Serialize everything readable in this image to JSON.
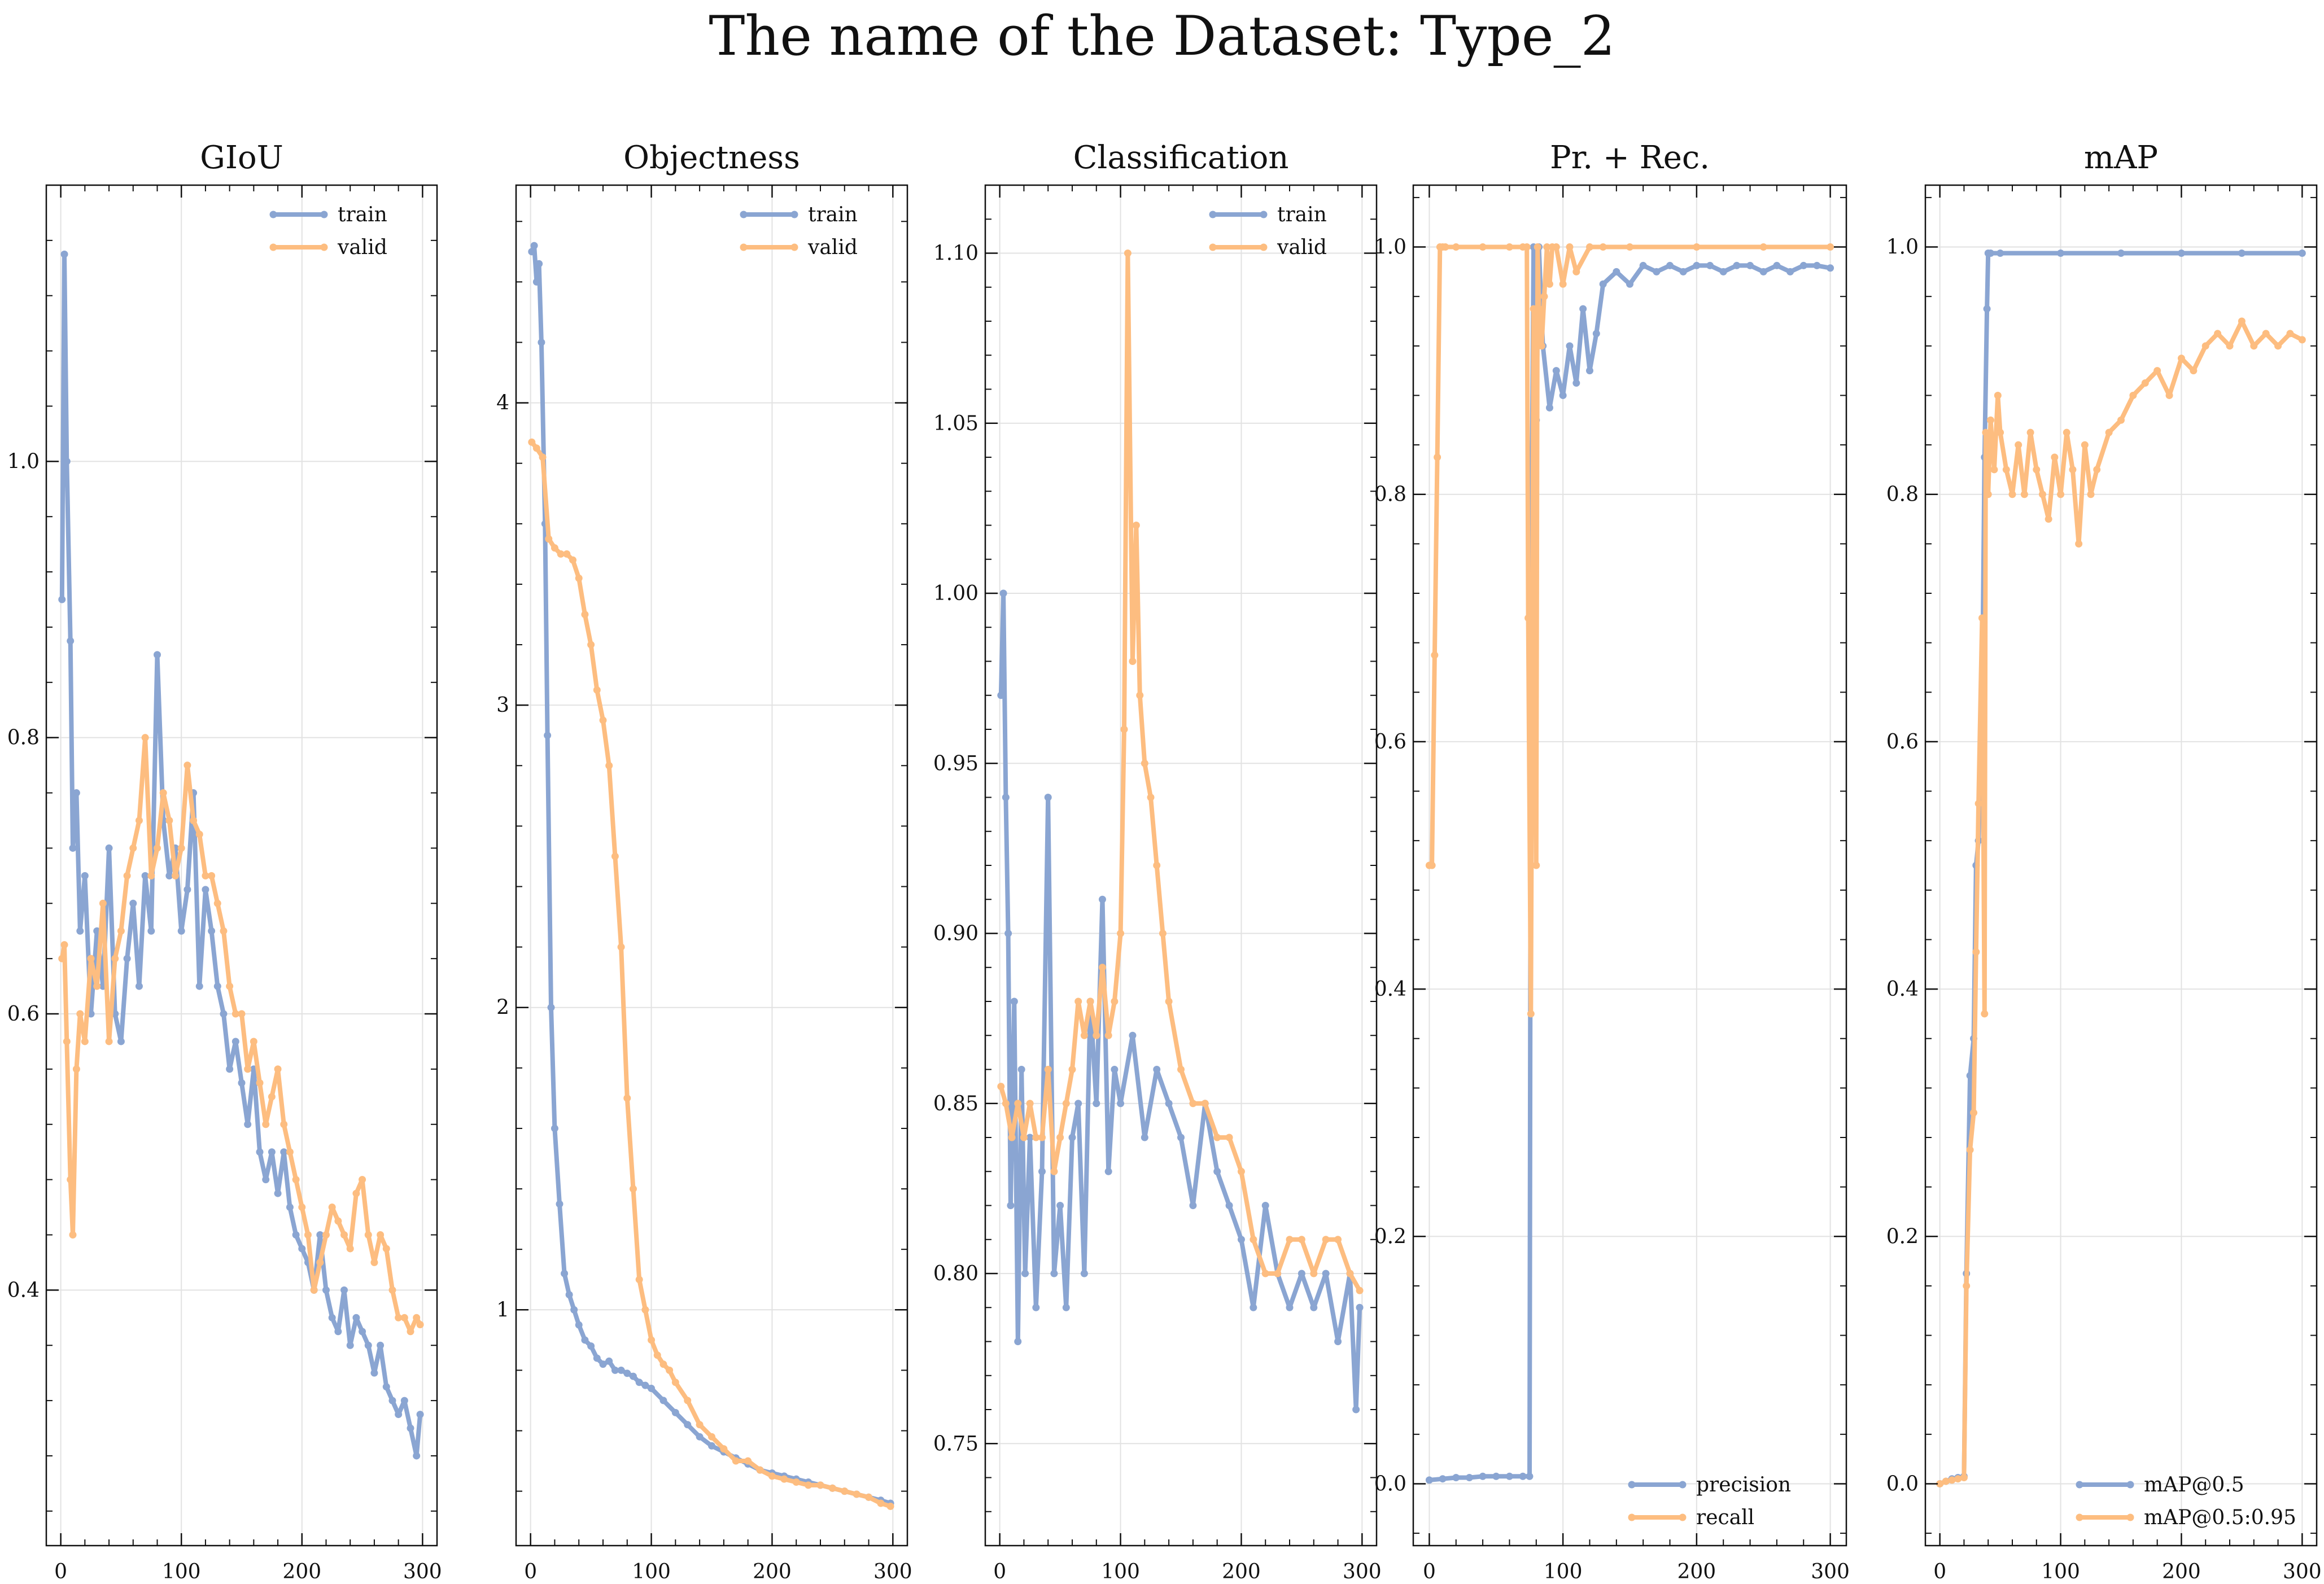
{
  "suptitle": "The name of the Dataset: Type_2",
  "colors": {
    "blue": "#8aa5d2",
    "orange": "#fdbd80"
  },
  "chart_data": [
    {
      "type": "line",
      "title": "GIoU",
      "xlabel": "",
      "ylabel": "",
      "xlim": [
        -12,
        312
      ],
      "ylim": [
        0.215,
        1.2
      ],
      "xticks": [
        0,
        100,
        200,
        300
      ],
      "yticks": [
        0.4,
        0.6,
        0.8,
        1.0
      ],
      "ytick_labels": [
        "0.4",
        "0.6",
        "0.8",
        "1.0"
      ],
      "grid": true,
      "legend": "top-right",
      "series": [
        {
          "name": "train",
          "color": "#8aa5d2",
          "x": [
            1,
            3,
            5,
            8,
            10,
            13,
            16,
            20,
            25,
            30,
            35,
            40,
            45,
            50,
            55,
            60,
            65,
            70,
            75,
            80,
            85,
            90,
            95,
            100,
            105,
            110,
            115,
            120,
            125,
            130,
            135,
            140,
            145,
            150,
            155,
            160,
            165,
            170,
            175,
            180,
            185,
            190,
            195,
            200,
            205,
            210,
            215,
            220,
            225,
            230,
            235,
            240,
            245,
            250,
            255,
            260,
            265,
            270,
            275,
            280,
            285,
            290,
            295,
            298
          ],
          "y": [
            0.9,
            1.15,
            1.0,
            0.87,
            0.72,
            0.76,
            0.66,
            0.7,
            0.6,
            0.66,
            0.62,
            0.72,
            0.6,
            0.58,
            0.64,
            0.68,
            0.62,
            0.7,
            0.66,
            0.86,
            0.74,
            0.7,
            0.72,
            0.66,
            0.69,
            0.76,
            0.62,
            0.69,
            0.66,
            0.62,
            0.6,
            0.56,
            0.58,
            0.55,
            0.52,
            0.56,
            0.5,
            0.48,
            0.5,
            0.47,
            0.5,
            0.46,
            0.44,
            0.43,
            0.42,
            0.4,
            0.44,
            0.4,
            0.38,
            0.37,
            0.4,
            0.36,
            0.38,
            0.37,
            0.36,
            0.34,
            0.36,
            0.33,
            0.32,
            0.31,
            0.32,
            0.3,
            0.28,
            0.31
          ]
        },
        {
          "name": "valid",
          "color": "#fdbd80",
          "x": [
            1,
            3,
            5,
            8,
            10,
            13,
            16,
            20,
            25,
            30,
            35,
            40,
            45,
            50,
            55,
            60,
            65,
            70,
            75,
            80,
            85,
            90,
            95,
            100,
            105,
            110,
            115,
            120,
            125,
            130,
            135,
            140,
            145,
            150,
            155,
            160,
            165,
            170,
            175,
            180,
            185,
            190,
            195,
            200,
            205,
            210,
            215,
            220,
            225,
            230,
            235,
            240,
            245,
            250,
            255,
            260,
            265,
            270,
            275,
            280,
            285,
            290,
            295,
            298
          ],
          "y": [
            0.64,
            0.65,
            0.58,
            0.48,
            0.44,
            0.56,
            0.6,
            0.58,
            0.64,
            0.62,
            0.68,
            0.58,
            0.64,
            0.66,
            0.7,
            0.72,
            0.74,
            0.8,
            0.7,
            0.72,
            0.76,
            0.74,
            0.7,
            0.72,
            0.78,
            0.74,
            0.73,
            0.7,
            0.7,
            0.68,
            0.66,
            0.62,
            0.6,
            0.6,
            0.56,
            0.58,
            0.55,
            0.52,
            0.54,
            0.56,
            0.52,
            0.5,
            0.48,
            0.46,
            0.44,
            0.4,
            0.42,
            0.44,
            0.46,
            0.45,
            0.44,
            0.43,
            0.47,
            0.48,
            0.44,
            0.42,
            0.44,
            0.43,
            0.4,
            0.38,
            0.38,
            0.37,
            0.38,
            0.375
          ]
        }
      ]
    },
    {
      "type": "line",
      "title": "Objectness",
      "xlabel": "",
      "ylabel": "",
      "xlim": [
        -12,
        312
      ],
      "ylim": [
        0.22,
        4.72
      ],
      "xticks": [
        0,
        100,
        200,
        300
      ],
      "yticks": [
        1,
        2,
        3,
        4
      ],
      "ytick_labels": [
        "1",
        "2",
        "3",
        "4"
      ],
      "grid": true,
      "legend": "top-right",
      "series": [
        {
          "name": "train",
          "color": "#8aa5d2",
          "x": [
            1,
            3,
            5,
            7,
            9,
            12,
            14,
            17,
            20,
            24,
            28,
            32,
            36,
            40,
            45,
            50,
            55,
            60,
            65,
            70,
            75,
            80,
            85,
            90,
            95,
            100,
            110,
            120,
            130,
            140,
            150,
            160,
            170,
            180,
            190,
            200,
            210,
            220,
            230,
            240,
            250,
            260,
            270,
            280,
            290,
            298
          ],
          "y": [
            4.5,
            4.52,
            4.4,
            4.46,
            4.2,
            3.6,
            2.9,
            2.0,
            1.6,
            1.35,
            1.12,
            1.05,
            1.0,
            0.95,
            0.9,
            0.88,
            0.84,
            0.82,
            0.83,
            0.8,
            0.8,
            0.79,
            0.78,
            0.76,
            0.75,
            0.74,
            0.7,
            0.66,
            0.62,
            0.58,
            0.55,
            0.53,
            0.51,
            0.49,
            0.47,
            0.46,
            0.45,
            0.44,
            0.43,
            0.42,
            0.41,
            0.4,
            0.39,
            0.38,
            0.37,
            0.36
          ]
        },
        {
          "name": "valid",
          "color": "#fdbd80",
          "x": [
            1,
            5,
            10,
            15,
            20,
            25,
            30,
            35,
            40,
            45,
            50,
            55,
            60,
            65,
            70,
            75,
            80,
            85,
            90,
            95,
            100,
            105,
            110,
            115,
            120,
            130,
            140,
            150,
            160,
            170,
            180,
            190,
            200,
            210,
            220,
            230,
            240,
            250,
            260,
            270,
            280,
            290,
            298
          ],
          "y": [
            3.87,
            3.85,
            3.82,
            3.55,
            3.52,
            3.5,
            3.5,
            3.48,
            3.42,
            3.3,
            3.2,
            3.05,
            2.95,
            2.8,
            2.5,
            2.2,
            1.7,
            1.4,
            1.1,
            1.0,
            0.9,
            0.85,
            0.82,
            0.8,
            0.76,
            0.7,
            0.62,
            0.58,
            0.54,
            0.5,
            0.5,
            0.47,
            0.45,
            0.44,
            0.43,
            0.42,
            0.42,
            0.41,
            0.4,
            0.39,
            0.38,
            0.36,
            0.35
          ]
        }
      ]
    },
    {
      "type": "line",
      "title": "Classification",
      "xlabel": "",
      "ylabel": "",
      "xlim": [
        -12,
        312
      ],
      "ylim": [
        0.72,
        1.12
      ],
      "xticks": [
        0,
        100,
        200,
        300
      ],
      "yticks": [
        0.75,
        0.8,
        0.85,
        0.9,
        0.95,
        1.0,
        1.05,
        1.1
      ],
      "ytick_labels": [
        "0.75",
        "0.80",
        "0.85",
        "0.90",
        "0.95",
        "1.00",
        "1.05",
        "1.10"
      ],
      "grid": true,
      "legend": "top-right",
      "series": [
        {
          "name": "train",
          "color": "#8aa5d2",
          "x": [
            1,
            3,
            5,
            7,
            9,
            12,
            15,
            18,
            21,
            25,
            30,
            35,
            40,
            45,
            50,
            55,
            60,
            65,
            70,
            75,
            80,
            85,
            90,
            95,
            100,
            110,
            120,
            130,
            140,
            150,
            160,
            170,
            180,
            190,
            200,
            210,
            220,
            230,
            240,
            250,
            260,
            270,
            280,
            290,
            295,
            298
          ],
          "y": [
            0.97,
            1.0,
            0.94,
            0.9,
            0.82,
            0.88,
            0.78,
            0.86,
            0.8,
            0.84,
            0.79,
            0.83,
            0.94,
            0.8,
            0.82,
            0.79,
            0.84,
            0.85,
            0.8,
            0.88,
            0.85,
            0.91,
            0.83,
            0.86,
            0.85,
            0.87,
            0.84,
            0.86,
            0.85,
            0.84,
            0.82,
            0.85,
            0.83,
            0.82,
            0.81,
            0.79,
            0.82,
            0.8,
            0.79,
            0.8,
            0.79,
            0.8,
            0.78,
            0.8,
            0.76,
            0.79
          ]
        },
        {
          "name": "valid",
          "color": "#fdbd80",
          "x": [
            1,
            5,
            10,
            15,
            20,
            25,
            30,
            35,
            40,
            45,
            50,
            55,
            60,
            65,
            70,
            75,
            80,
            85,
            90,
            95,
            100,
            103,
            106,
            110,
            113,
            116,
            120,
            125,
            130,
            135,
            140,
            150,
            160,
            170,
            180,
            190,
            200,
            210,
            220,
            230,
            240,
            250,
            260,
            270,
            280,
            290,
            298
          ],
          "y": [
            0.855,
            0.85,
            0.84,
            0.85,
            0.84,
            0.85,
            0.84,
            0.84,
            0.86,
            0.83,
            0.84,
            0.85,
            0.86,
            0.88,
            0.87,
            0.88,
            0.87,
            0.89,
            0.87,
            0.88,
            0.9,
            0.96,
            1.1,
            0.98,
            1.02,
            0.97,
            0.95,
            0.94,
            0.92,
            0.9,
            0.88,
            0.86,
            0.85,
            0.85,
            0.84,
            0.84,
            0.83,
            0.81,
            0.8,
            0.8,
            0.81,
            0.81,
            0.8,
            0.81,
            0.81,
            0.8,
            0.795
          ]
        }
      ]
    },
    {
      "type": "line",
      "title": "Pr. + Rec.",
      "xlabel": "",
      "ylabel": "",
      "xlim": [
        -12,
        312
      ],
      "ylim": [
        -0.05,
        1.05
      ],
      "xticks": [
        0,
        100,
        200,
        300
      ],
      "yticks": [
        0.0,
        0.2,
        0.4,
        0.6,
        0.8,
        1.0
      ],
      "ytick_labels": [
        "0.0",
        "0.2",
        "0.4",
        "0.6",
        "0.8",
        "1.0"
      ],
      "grid": true,
      "legend": "bottom-right",
      "series": [
        {
          "name": "precision",
          "color": "#8aa5d2",
          "x": [
            0,
            10,
            20,
            30,
            40,
            50,
            60,
            70,
            75,
            76,
            78,
            80,
            82,
            85,
            90,
            95,
            100,
            105,
            110,
            115,
            120,
            125,
            130,
            140,
            150,
            160,
            170,
            180,
            190,
            200,
            210,
            220,
            230,
            240,
            250,
            260,
            270,
            280,
            290,
            300
          ],
          "y": [
            0.003,
            0.004,
            0.005,
            0.005,
            0.006,
            0.006,
            0.006,
            0.006,
            0.006,
            0.7,
            1.0,
            0.86,
            1.0,
            0.92,
            0.87,
            0.9,
            0.88,
            0.92,
            0.89,
            0.95,
            0.9,
            0.93,
            0.97,
            0.98,
            0.97,
            0.985,
            0.98,
            0.985,
            0.98,
            0.985,
            0.985,
            0.98,
            0.985,
            0.985,
            0.98,
            0.985,
            0.98,
            0.985,
            0.985,
            0.983
          ]
        },
        {
          "name": "recall",
          "color": "#fdbd80",
          "x": [
            0,
            2,
            4,
            6,
            8,
            10,
            12,
            20,
            40,
            60,
            70,
            73,
            74,
            76,
            78,
            80,
            81,
            82,
            84,
            86,
            88,
            90,
            92,
            95,
            100,
            105,
            110,
            120,
            130,
            150,
            200,
            250,
            300
          ],
          "y": [
            0.5,
            0.5,
            0.67,
            0.83,
            1.0,
            1.0,
            1.0,
            1.0,
            1.0,
            1.0,
            1.0,
            1.0,
            0.7,
            0.38,
            0.95,
            0.5,
            1.0,
            0.95,
            0.92,
            0.96,
            1.0,
            0.97,
            1.0,
            1.0,
            0.97,
            1.0,
            0.98,
            1.0,
            1.0,
            1.0,
            1.0,
            1.0,
            1.0
          ]
        }
      ]
    },
    {
      "type": "line",
      "title": "mAP",
      "xlabel": "",
      "ylabel": "",
      "xlim": [
        -12,
        312
      ],
      "ylim": [
        -0.05,
        1.05
      ],
      "xticks": [
        0,
        100,
        200,
        300
      ],
      "yticks": [
        0.0,
        0.2,
        0.4,
        0.6,
        0.8,
        1.0
      ],
      "ytick_labels": [
        "0.0",
        "0.2",
        "0.4",
        "0.6",
        "0.8",
        "1.0"
      ],
      "grid": true,
      "legend": "bottom-right",
      "series": [
        {
          "name": "mAP@0.5",
          "color": "#8aa5d2",
          "x": [
            0,
            5,
            10,
            15,
            20,
            22,
            25,
            28,
            30,
            32,
            35,
            37,
            39,
            40,
            42,
            50,
            100,
            150,
            200,
            250,
            300
          ],
          "y": [
            0.0,
            0.002,
            0.004,
            0.005,
            0.006,
            0.17,
            0.33,
            0.36,
            0.5,
            0.52,
            0.63,
            0.83,
            0.95,
            0.995,
            0.995,
            0.995,
            0.995,
            0.995,
            0.995,
            0.995,
            0.995
          ]
        },
        {
          "name": "mAP@0.5:0.95",
          "color": "#fdbd80",
          "x": [
            0,
            5,
            10,
            15,
            20,
            22,
            25,
            28,
            30,
            32,
            35,
            37,
            38,
            40,
            42,
            45,
            48,
            50,
            55,
            60,
            65,
            70,
            75,
            80,
            85,
            90,
            95,
            100,
            105,
            110,
            115,
            120,
            125,
            130,
            140,
            150,
            160,
            170,
            180,
            190,
            200,
            210,
            220,
            230,
            240,
            250,
            260,
            270,
            280,
            290,
            300
          ],
          "y": [
            0.0,
            0.002,
            0.003,
            0.004,
            0.005,
            0.16,
            0.27,
            0.3,
            0.43,
            0.55,
            0.7,
            0.38,
            0.85,
            0.8,
            0.86,
            0.82,
            0.88,
            0.85,
            0.82,
            0.8,
            0.84,
            0.8,
            0.85,
            0.82,
            0.8,
            0.78,
            0.83,
            0.8,
            0.85,
            0.82,
            0.76,
            0.84,
            0.8,
            0.82,
            0.85,
            0.86,
            0.88,
            0.89,
            0.9,
            0.88,
            0.91,
            0.9,
            0.92,
            0.93,
            0.92,
            0.94,
            0.92,
            0.93,
            0.92,
            0.93,
            0.925
          ]
        }
      ]
    }
  ]
}
